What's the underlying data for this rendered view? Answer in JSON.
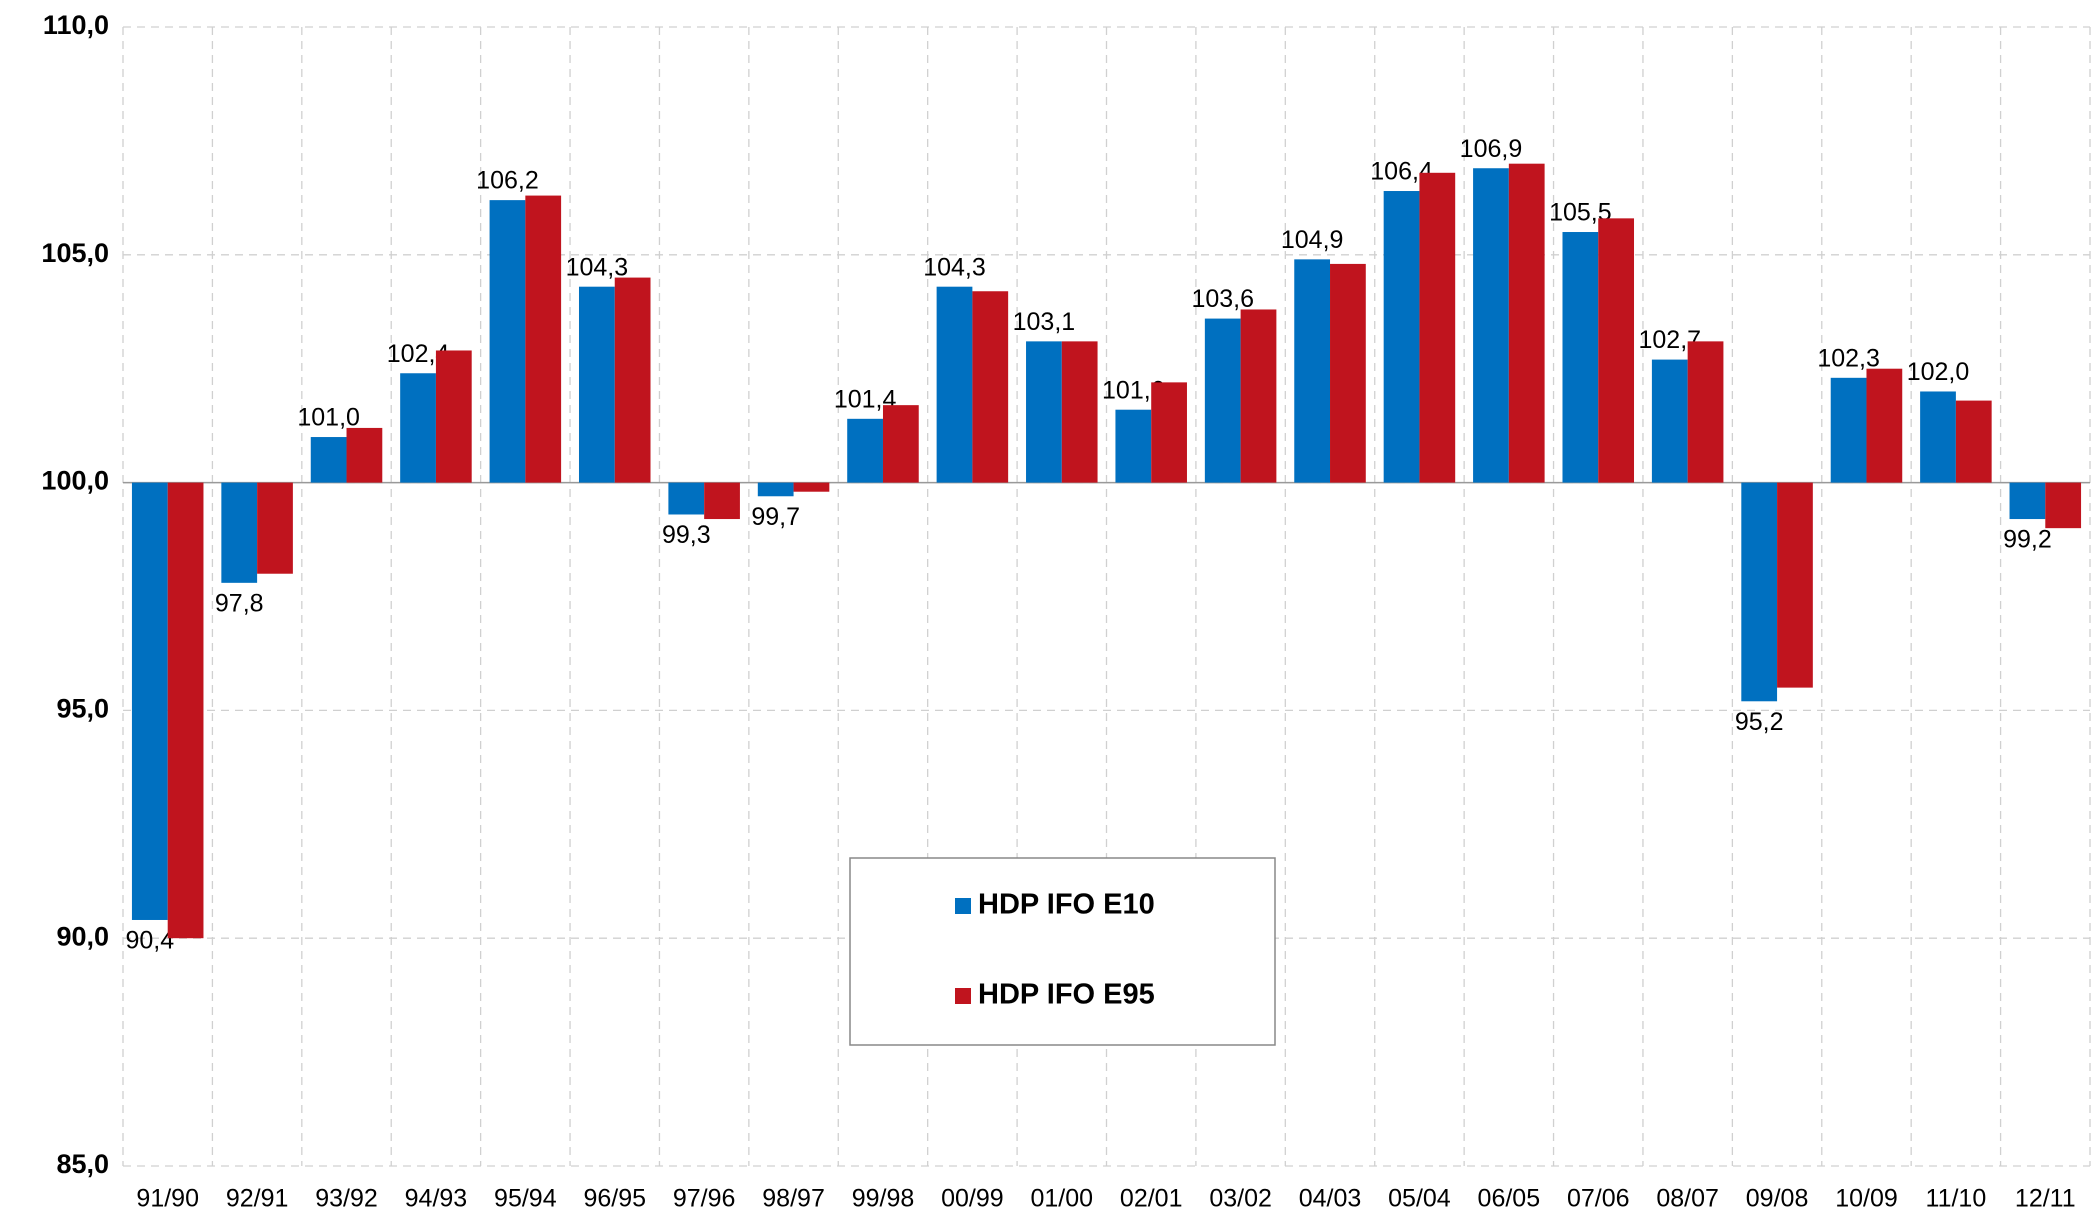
{
  "chart_data": {
    "type": "bar",
    "categories": [
      "91/90",
      "92/91",
      "93/92",
      "94/93",
      "95/94",
      "96/95",
      "97/96",
      "98/97",
      "99/98",
      "00/99",
      "01/00",
      "02/01",
      "03/02",
      "04/03",
      "05/04",
      "06/05",
      "07/06",
      "08/07",
      "09/08",
      "10/09",
      "11/10",
      "12/11"
    ],
    "series": [
      {
        "name": "HDP IFO E10",
        "color": "#0070c0",
        "values": [
          90.4,
          97.8,
          101.0,
          102.4,
          106.2,
          104.3,
          99.3,
          99.7,
          101.4,
          104.3,
          103.1,
          101.6,
          103.6,
          104.9,
          106.4,
          106.9,
          105.5,
          102.7,
          95.2,
          102.3,
          102.0,
          99.2
        ],
        "value_labels": [
          "90,4",
          "97,8",
          "101,0",
          "102,4",
          "106,2",
          "104,3",
          "99,3",
          "99,7",
          "101,4",
          "104,3",
          "103,1",
          "101,6",
          "103,6",
          "104,9",
          "106,4",
          "106,9",
          "105,5",
          "102,7",
          "95,2",
          "102,3",
          "102,0",
          "99,2"
        ]
      },
      {
        "name": "HDP IFO E95",
        "color": "#c0141e",
        "values": [
          90.0,
          98.0,
          101.2,
          102.9,
          106.3,
          104.5,
          99.2,
          99.8,
          101.7,
          104.2,
          103.1,
          102.2,
          103.8,
          104.8,
          106.8,
          107.0,
          105.8,
          103.1,
          95.5,
          102.5,
          101.8,
          99.0
        ]
      }
    ],
    "base": 100,
    "ylim": [
      85,
      110
    ],
    "yticks": [
      {
        "value": 85,
        "label": "85,0"
      },
      {
        "value": 90,
        "label": "90,0"
      },
      {
        "value": 95,
        "label": "95,0"
      },
      {
        "value": 100,
        "label": "100,0"
      },
      {
        "value": 105,
        "label": "105,0"
      },
      {
        "value": 110,
        "label": "110,0"
      }
    ],
    "grid": true
  }
}
